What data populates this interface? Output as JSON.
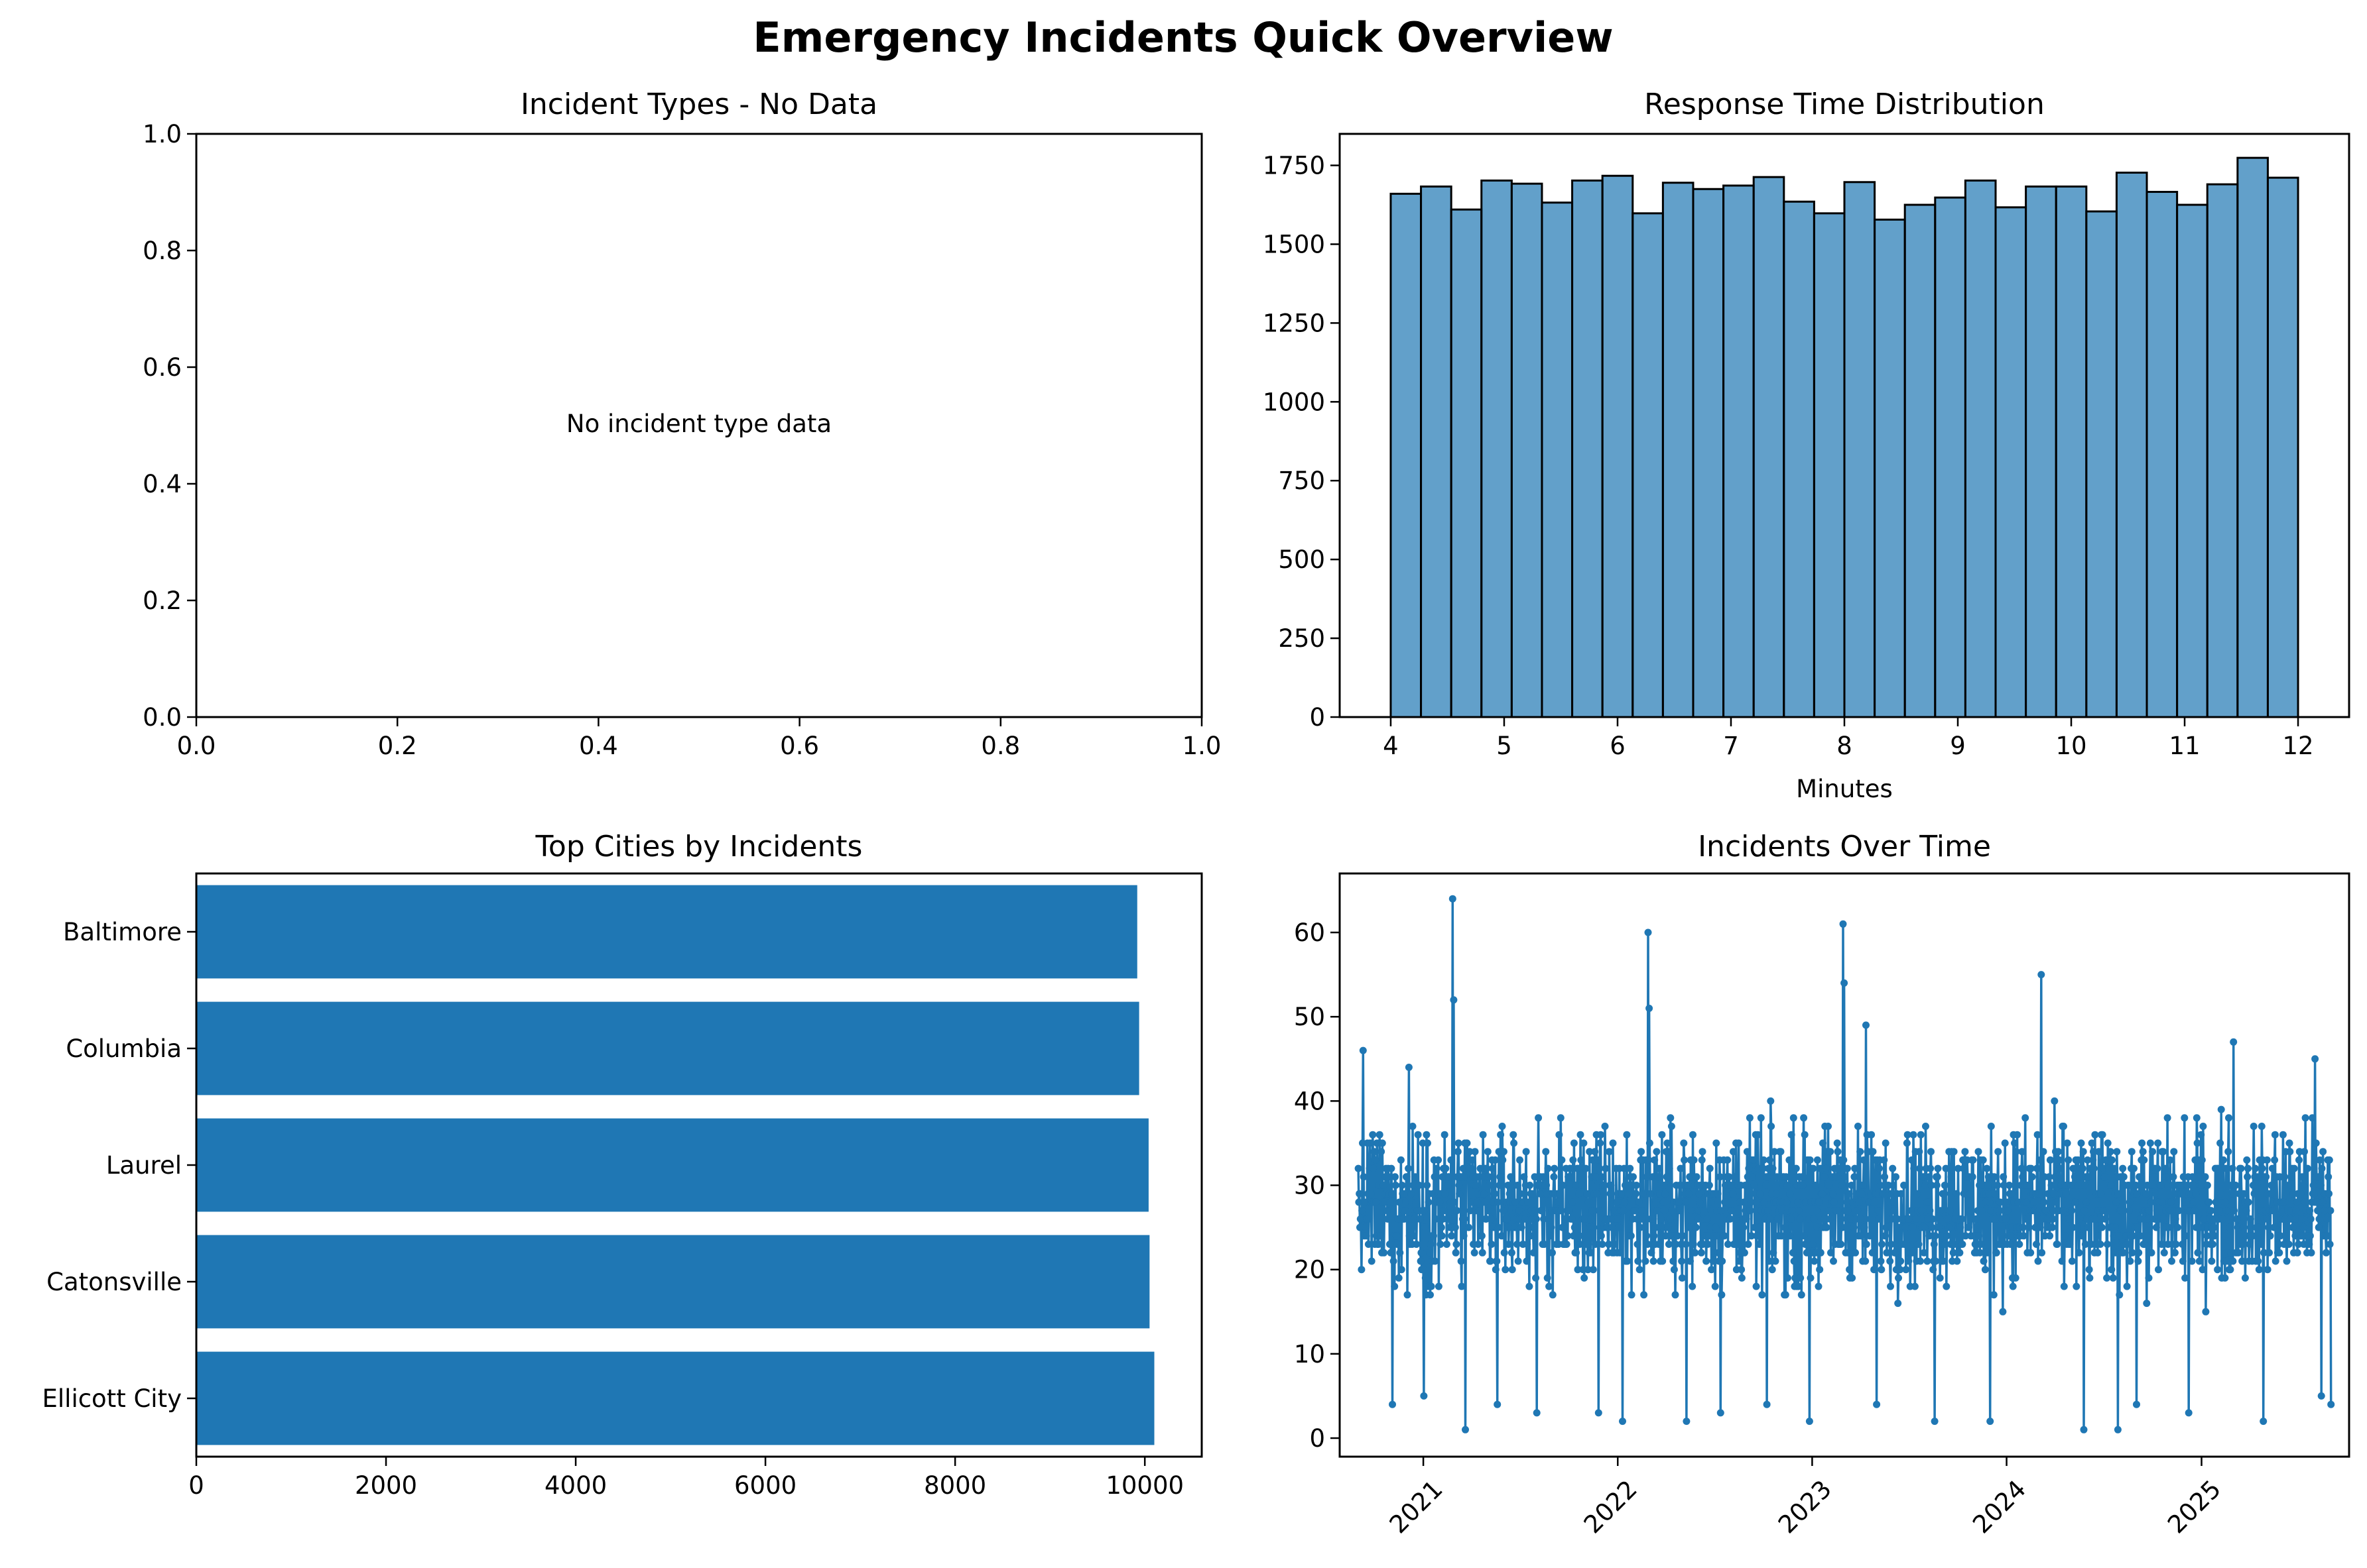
{
  "figure": {
    "title": "Emergency Incidents Quick Overview"
  },
  "chart_data": [
    {
      "type": "empty",
      "title": "Incident Types - No Data",
      "message": "No incident type data",
      "xlim": [
        0,
        1
      ],
      "ylim": [
        0,
        1
      ],
      "xticks": [
        0.0,
        0.2,
        0.4,
        0.6,
        0.8,
        1.0
      ],
      "yticks": [
        0.0,
        0.2,
        0.4,
        0.6,
        0.8,
        1.0
      ]
    },
    {
      "type": "bar",
      "subtype": "histogram",
      "title": "Response Time Distribution",
      "xlabel": "Minutes",
      "ylabel": "",
      "bin_start": 4,
      "bin_end": 12,
      "values": [
        1660,
        1683,
        1610,
        1702,
        1692,
        1632,
        1702,
        1717,
        1598,
        1695,
        1675,
        1686,
        1713,
        1635,
        1598,
        1697,
        1578,
        1625,
        1648,
        1702,
        1617,
        1683,
        1683,
        1604,
        1727,
        1666,
        1625,
        1690,
        1774,
        1711
      ],
      "xlim": [
        3.55,
        12.45
      ],
      "ylim": [
        0,
        1850
      ],
      "xticks": [
        4,
        5,
        6,
        7,
        8,
        9,
        10,
        11,
        12
      ],
      "yticks": [
        0,
        250,
        500,
        750,
        1000,
        1250,
        1500,
        1750
      ],
      "color": "#1f77b4",
      "alpha": 0.7,
      "edgecolor": "#000000"
    },
    {
      "type": "bar",
      "orientation": "horizontal",
      "title": "Top Cities by Incidents",
      "categories": [
        "Baltimore",
        "Columbia",
        "Laurel",
        "Catonsville",
        "Ellicott City"
      ],
      "values": [
        9920,
        9940,
        10040,
        10050,
        10100
      ],
      "xlim": [
        0,
        10600
      ],
      "xticks": [
        0,
        2000,
        4000,
        6000,
        8000,
        10000
      ],
      "color": "#1f77b4"
    },
    {
      "type": "line",
      "title": "Incidents Over Time",
      "x_start": "2020-09-01",
      "x_end": "2025-09-01",
      "xlim": [
        "2020-07-28",
        "2025-10-05"
      ],
      "ylim": [
        -2.2,
        67
      ],
      "xticks": [
        "2021",
        "2022",
        "2023",
        "2024",
        "2025"
      ],
      "yticks": [
        0,
        10,
        20,
        30,
        40,
        50,
        60
      ],
      "base": 27.5,
      "noise": 4.5,
      "spikes": [
        {
          "x": "2020-09-10",
          "y": 46
        },
        {
          "x": "2020-11-04",
          "y": 4
        },
        {
          "x": "2020-12-05",
          "y": 44
        },
        {
          "x": "2021-01-02",
          "y": 5
        },
        {
          "x": "2021-02-25",
          "y": 64
        },
        {
          "x": "2021-02-27",
          "y": 52
        },
        {
          "x": "2021-03-21",
          "y": 1
        },
        {
          "x": "2021-05-20",
          "y": 4
        },
        {
          "x": "2021-08-02",
          "y": 3
        },
        {
          "x": "2021-11-26",
          "y": 3
        },
        {
          "x": "2022-01-10",
          "y": 2
        },
        {
          "x": "2022-02-27",
          "y": 60
        },
        {
          "x": "2022-03-01",
          "y": 51
        },
        {
          "x": "2022-05-10",
          "y": 2
        },
        {
          "x": "2022-07-13",
          "y": 3
        },
        {
          "x": "2022-10-08",
          "y": 4
        },
        {
          "x": "2022-12-27",
          "y": 2
        },
        {
          "x": "2023-02-28",
          "y": 61
        },
        {
          "x": "2023-03-02",
          "y": 54
        },
        {
          "x": "2023-04-12",
          "y": 49
        },
        {
          "x": "2023-05-02",
          "y": 4
        },
        {
          "x": "2023-08-19",
          "y": 2
        },
        {
          "x": "2023-12-01",
          "y": 2
        },
        {
          "x": "2024-03-06",
          "y": 55
        },
        {
          "x": "2024-05-25",
          "y": 1
        },
        {
          "x": "2024-07-28",
          "y": 1
        },
        {
          "x": "2024-09-01",
          "y": 4
        },
        {
          "x": "2024-12-08",
          "y": 3
        },
        {
          "x": "2025-03-02",
          "y": 47
        },
        {
          "x": "2025-04-27",
          "y": 2
        },
        {
          "x": "2025-08-02",
          "y": 45
        },
        {
          "x": "2025-08-14",
          "y": 5
        },
        {
          "x": "2025-09-01",
          "y": 4
        }
      ],
      "color": "#1f77b4",
      "marker": "circle"
    }
  ]
}
